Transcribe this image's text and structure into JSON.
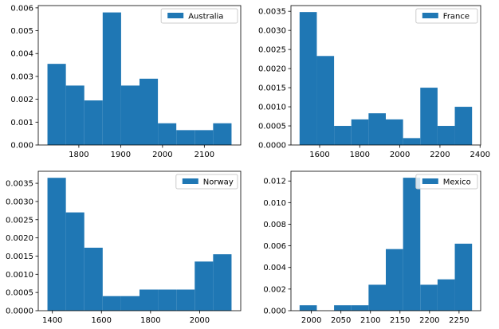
{
  "chart_data": [
    {
      "type": "bar",
      "subtype": "histogram",
      "series": [
        {
          "name": "Australia",
          "color": "#1f77b4"
        }
      ],
      "bins": [
        {
          "x0": 1725,
          "x1": 1769,
          "density": 0.00355
        },
        {
          "x0": 1769,
          "x1": 1813,
          "density": 0.0026
        },
        {
          "x0": 1813,
          "x1": 1857,
          "density": 0.00195
        },
        {
          "x0": 1857,
          "x1": 1901,
          "density": 0.0058
        },
        {
          "x0": 1901,
          "x1": 1945,
          "density": 0.0026
        },
        {
          "x0": 1945,
          "x1": 1989,
          "density": 0.0029
        },
        {
          "x0": 1989,
          "x1": 2033,
          "density": 0.00095
        },
        {
          "x0": 2033,
          "x1": 2077,
          "density": 0.00065
        },
        {
          "x0": 2077,
          "x1": 2121,
          "density": 0.00065
        },
        {
          "x0": 2121,
          "x1": 2165,
          "density": 0.00095
        }
      ],
      "xlim": [
        1703,
        2187
      ],
      "ylim": [
        0,
        0.0061
      ],
      "xticks": [
        1800,
        1900,
        2000,
        2100
      ],
      "xtick_labels": [
        "1800",
        "1900",
        "2000",
        "2100"
      ],
      "yticks": [
        0,
        0.001,
        0.002,
        0.003,
        0.004,
        0.005,
        0.006
      ],
      "ytick_labels": [
        "0.000",
        "0.001",
        "0.002",
        "0.003",
        "0.004",
        "0.005",
        "0.006"
      ],
      "legend": "upper right",
      "grid": false
    },
    {
      "type": "bar",
      "subtype": "histogram",
      "series": [
        {
          "name": "France",
          "color": "#1f77b4"
        }
      ],
      "bins": [
        {
          "x0": 1500,
          "x1": 1586,
          "density": 0.00348
        },
        {
          "x0": 1586,
          "x1": 1672,
          "density": 0.00233
        },
        {
          "x0": 1672,
          "x1": 1758,
          "density": 0.0005
        },
        {
          "x0": 1758,
          "x1": 1844,
          "density": 0.00067
        },
        {
          "x0": 1844,
          "x1": 1930,
          "density": 0.00083
        },
        {
          "x0": 1930,
          "x1": 2016,
          "density": 0.00067
        },
        {
          "x0": 2016,
          "x1": 2102,
          "density": 0.00018
        },
        {
          "x0": 2102,
          "x1": 2188,
          "density": 0.0015
        },
        {
          "x0": 2188,
          "x1": 2274,
          "density": 0.0005
        },
        {
          "x0": 2274,
          "x1": 2360,
          "density": 0.001
        }
      ],
      "xlim": [
        1457,
        2403
      ],
      "ylim": [
        0,
        0.00365
      ],
      "xticks": [
        1600,
        1800,
        2000,
        2200,
        2400
      ],
      "xtick_labels": [
        "1600",
        "1800",
        "2000",
        "2200",
        "2400"
      ],
      "yticks": [
        0,
        0.0005,
        0.001,
        0.0015,
        0.002,
        0.0025,
        0.003,
        0.0035
      ],
      "ytick_labels": [
        "0.0000",
        "0.0005",
        "0.0010",
        "0.0015",
        "0.0020",
        "0.0025",
        "0.0030",
        "0.0035"
      ],
      "legend": "upper right",
      "grid": false
    },
    {
      "type": "bar",
      "subtype": "histogram",
      "series": [
        {
          "name": "Norway",
          "color": "#1f77b4"
        }
      ],
      "bins": [
        {
          "x0": 1380,
          "x1": 1455,
          "density": 0.00365
        },
        {
          "x0": 1455,
          "x1": 1530,
          "density": 0.0027
        },
        {
          "x0": 1530,
          "x1": 1605,
          "density": 0.00173
        },
        {
          "x0": 1605,
          "x1": 1680,
          "density": 0.0004
        },
        {
          "x0": 1680,
          "x1": 1755,
          "density": 0.0004
        },
        {
          "x0": 1755,
          "x1": 1830,
          "density": 0.00058
        },
        {
          "x0": 1830,
          "x1": 1905,
          "density": 0.00058
        },
        {
          "x0": 1905,
          "x1": 1980,
          "density": 0.00058
        },
        {
          "x0": 1980,
          "x1": 2055,
          "density": 0.00135
        },
        {
          "x0": 2055,
          "x1": 2130,
          "density": 0.00155
        }
      ],
      "xlim": [
        1342.5,
        2167.5
      ],
      "ylim": [
        0,
        0.00383
      ],
      "xticks": [
        1400,
        1600,
        1800,
        2000
      ],
      "xtick_labels": [
        "1400",
        "1600",
        "1800",
        "2000"
      ],
      "yticks": [
        0,
        0.0005,
        0.001,
        0.0015,
        0.002,
        0.0025,
        0.003,
        0.0035
      ],
      "ytick_labels": [
        "0.0000",
        "0.0005",
        "0.0010",
        "0.0015",
        "0.0020",
        "0.0025",
        "0.0030",
        "0.0035"
      ],
      "legend": "upper right",
      "grid": false
    },
    {
      "type": "bar",
      "subtype": "histogram",
      "series": [
        {
          "name": "Mexico",
          "color": "#1f77b4"
        }
      ],
      "bins": [
        {
          "x0": 1980,
          "x1": 2009.2,
          "density": 0.0005
        },
        {
          "x0": 2009.2,
          "x1": 2038.4,
          "density": 0
        },
        {
          "x0": 2038.4,
          "x1": 2067.6,
          "density": 0.0005
        },
        {
          "x0": 2067.6,
          "x1": 2096.8,
          "density": 0.0005
        },
        {
          "x0": 2096.8,
          "x1": 2126,
          "density": 0.0024
        },
        {
          "x0": 2126,
          "x1": 2155.2,
          "density": 0.0057
        },
        {
          "x0": 2155.2,
          "x1": 2184.4,
          "density": 0.0123
        },
        {
          "x0": 2184.4,
          "x1": 2213.6,
          "density": 0.0024
        },
        {
          "x0": 2213.6,
          "x1": 2242.8,
          "density": 0.0029
        },
        {
          "x0": 2242.8,
          "x1": 2272,
          "density": 0.0062
        }
      ],
      "xlim": [
        1965.4,
        2286.6
      ],
      "ylim": [
        0,
        0.0129
      ],
      "xticks": [
        2000,
        2050,
        2100,
        2150,
        2200,
        2250
      ],
      "xtick_labels": [
        "2000",
        "2050",
        "2100",
        "2150",
        "2200",
        "2250"
      ],
      "yticks": [
        0,
        0.002,
        0.004,
        0.006,
        0.008,
        0.01,
        0.012
      ],
      "ytick_labels": [
        "0.000",
        "0.002",
        "0.004",
        "0.006",
        "0.008",
        "0.010",
        "0.012"
      ],
      "legend": "upper right",
      "grid": false
    }
  ]
}
